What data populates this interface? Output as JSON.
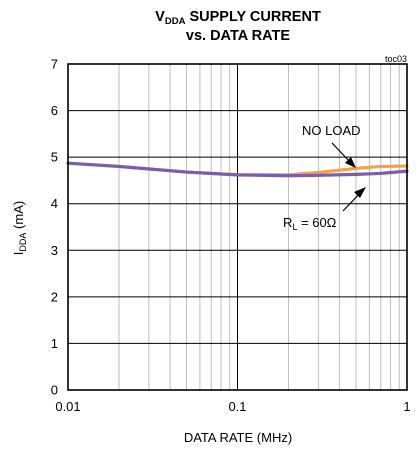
{
  "chart_data": {
    "type": "line",
    "title_line1_main": "V",
    "title_line1_sub": "DDA",
    "title_line1_rest": " SUPPLY CURRENT",
    "title_line2": "vs. DATA RATE",
    "figure_tag": "toc03",
    "xlabel": "DATA RATE (MHz)",
    "ylabel_main": "I",
    "ylabel_sub": "DDA",
    "ylabel_rest": " (mA)",
    "xscale": "log",
    "xlim": [
      0.01,
      1
    ],
    "ylim": [
      0,
      7
    ],
    "grid": true,
    "x_ticks": [
      {
        "value": 0.01,
        "label": "0.01"
      },
      {
        "value": 0.1,
        "label": "0.1"
      },
      {
        "value": 1,
        "label": "1"
      }
    ],
    "y_ticks": [
      {
        "value": 0,
        "label": "0"
      },
      {
        "value": 1,
        "label": "1"
      },
      {
        "value": 2,
        "label": "2"
      },
      {
        "value": 3,
        "label": "3"
      },
      {
        "value": 4,
        "label": "4"
      },
      {
        "value": 5,
        "label": "5"
      },
      {
        "value": 6,
        "label": "6"
      },
      {
        "value": 7,
        "label": "7"
      }
    ],
    "series": [
      {
        "name": "NO LOAD",
        "color": "#F5A04A",
        "x": [
          0.01,
          0.02,
          0.05,
          0.1,
          0.2,
          0.3,
          0.5,
          0.7,
          1
        ],
        "y": [
          4.87,
          4.8,
          4.68,
          4.62,
          4.62,
          4.67,
          4.76,
          4.8,
          4.81
        ]
      },
      {
        "name_main": "R",
        "name_sub": "L",
        "name_rest": " = 60Ω",
        "color": "#7A5FA8",
        "x": [
          0.01,
          0.02,
          0.05,
          0.1,
          0.2,
          0.3,
          0.5,
          0.7,
          1
        ],
        "y": [
          4.87,
          4.8,
          4.68,
          4.62,
          4.6,
          4.61,
          4.63,
          4.65,
          4.7
        ]
      }
    ]
  }
}
